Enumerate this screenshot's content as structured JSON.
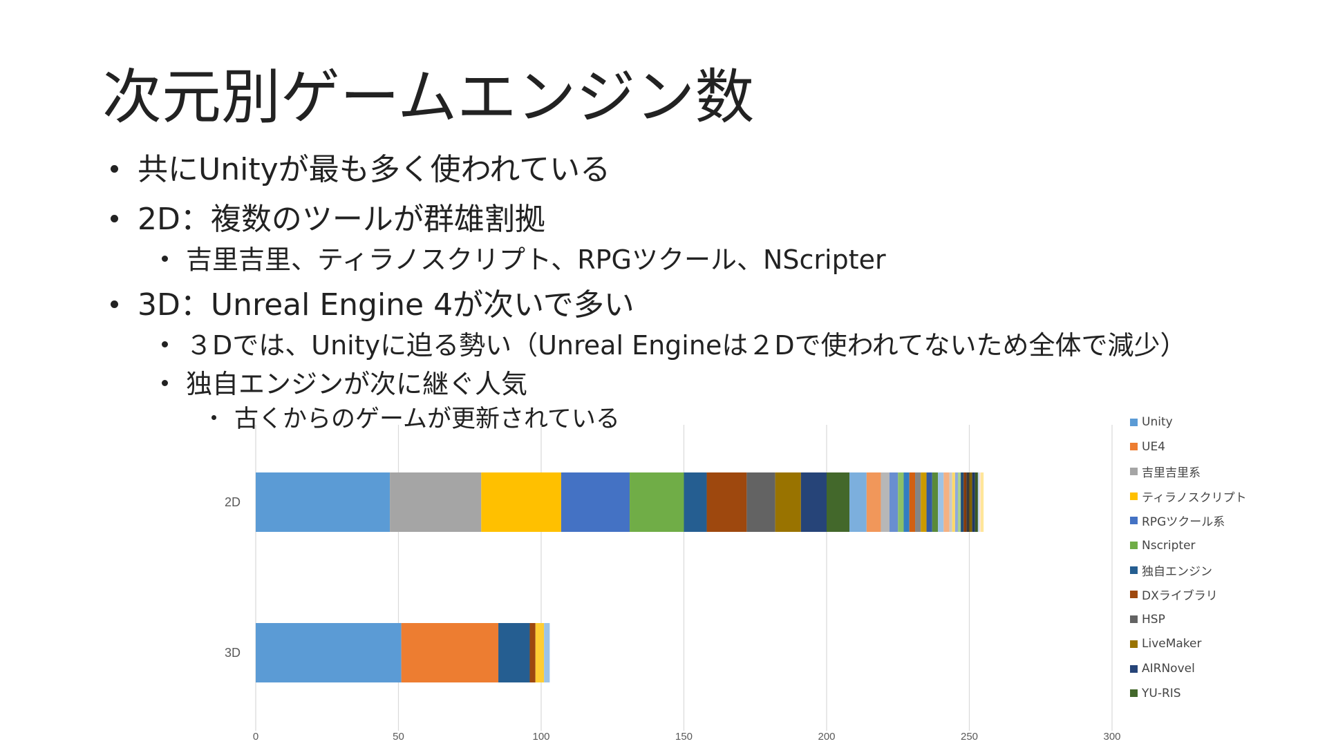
{
  "title": "次元別ゲームエンジン数",
  "bullets": [
    {
      "level": 1,
      "text": "共にUnityが最も多く使われている"
    },
    {
      "level": 1,
      "text": "2D：複数のツールが群雄割拠"
    },
    {
      "level": 2,
      "text": "吉里吉里、ティラノスクリプト、RPGツクール、NScripter"
    },
    {
      "level": 1,
      "text": "3D：Unreal Engine 4が次いで多い"
    },
    {
      "level": 2,
      "text": "３Dでは、Unityに迫る勢い（Unreal Engineは２Dで使われてないため全体で減少）"
    },
    {
      "level": 2,
      "text": "独自エンジンが次に継ぐ人気"
    },
    {
      "level": 3,
      "text": "古くからのゲームが更新されている"
    }
  ],
  "chart_data": {
    "type": "bar",
    "orientation": "horizontal",
    "stacked": true,
    "categories": [
      "2D",
      "3D"
    ],
    "xlim": [
      0,
      300
    ],
    "xticks": [
      0,
      50,
      100,
      150,
      200,
      250,
      300
    ],
    "grid": true,
    "legend_position": "right",
    "series": [
      {
        "name": "Unity",
        "color": "#5B9BD5",
        "values": [
          47,
          51
        ]
      },
      {
        "name": "UE4",
        "color": "#ED7D31",
        "values": [
          0,
          34
        ]
      },
      {
        "name": "吉里吉里系",
        "color": "#A5A5A5",
        "values": [
          32,
          0
        ]
      },
      {
        "name": "ティラノスクリプト",
        "color": "#FFC000",
        "values": [
          28,
          0
        ]
      },
      {
        "name": "RPGツクール系",
        "color": "#4472C4",
        "values": [
          24,
          0
        ]
      },
      {
        "name": "Nscripter",
        "color": "#70AD47",
        "values": [
          19,
          0
        ]
      },
      {
        "name": "独自エンジン",
        "color": "#255E91",
        "values": [
          8,
          11
        ]
      },
      {
        "name": "DXライブラリ",
        "color": "#9E480E",
        "values": [
          14,
          2
        ]
      },
      {
        "name": "HSP",
        "color": "#636363",
        "values": [
          10,
          0
        ]
      },
      {
        "name": "LiveMaker",
        "color": "#997300",
        "values": [
          9,
          0
        ]
      },
      {
        "name": "AIRNovel",
        "color": "#264478",
        "values": [
          9,
          0
        ]
      },
      {
        "name": "YU-RIS",
        "color": "#43682B",
        "values": [
          8,
          0
        ]
      },
      {
        "name": "",
        "color": "#7CAFDD",
        "values": [
          6,
          0
        ]
      },
      {
        "name": "",
        "color": "#F1975A",
        "values": [
          5,
          0
        ]
      },
      {
        "name": "",
        "color": "#B7B7B7",
        "values": [
          3,
          0
        ]
      },
      {
        "name": "",
        "color": "#FFCD33",
        "values": [
          0,
          3
        ]
      },
      {
        "name": "",
        "color": "#698ED0",
        "values": [
          3,
          0
        ]
      },
      {
        "name": "",
        "color": "#8CC168",
        "values": [
          2,
          0
        ]
      },
      {
        "name": "",
        "color": "#327DC2",
        "values": [
          2,
          0
        ]
      },
      {
        "name": "",
        "color": "#D26012",
        "values": [
          2,
          0
        ]
      },
      {
        "name": "",
        "color": "#848484",
        "values": [
          2,
          0
        ]
      },
      {
        "name": "",
        "color": "#CC9A00",
        "values": [
          2,
          0
        ]
      },
      {
        "name": "",
        "color": "#335AA1",
        "values": [
          2,
          0
        ]
      },
      {
        "name": "",
        "color": "#5A8A39",
        "values": [
          2,
          0
        ]
      },
      {
        "name": "",
        "color": "#9DC3E6",
        "values": [
          2,
          2
        ]
      },
      {
        "name": "",
        "color": "#F4B183",
        "values": [
          2,
          0
        ]
      },
      {
        "name": "",
        "color": "#C9C9C9",
        "values": [
          1,
          0
        ]
      },
      {
        "name": "",
        "color": "#FFD966",
        "values": [
          1,
          0
        ]
      },
      {
        "name": "",
        "color": "#8FAADC",
        "values": [
          1,
          0
        ]
      },
      {
        "name": "",
        "color": "#A9D18E",
        "values": [
          1,
          0
        ]
      },
      {
        "name": "",
        "color": "#1F4E79",
        "values": [
          1,
          0
        ]
      },
      {
        "name": "",
        "color": "#843C0C",
        "values": [
          1,
          0
        ]
      },
      {
        "name": "",
        "color": "#3A3A3A",
        "values": [
          1,
          0
        ]
      },
      {
        "name": "",
        "color": "#7F6000",
        "values": [
          1,
          0
        ]
      },
      {
        "name": "",
        "color": "#203864",
        "values": [
          1,
          0
        ]
      },
      {
        "name": "",
        "color": "#385723",
        "values": [
          1,
          0
        ]
      },
      {
        "name": "",
        "color": "#BDD7EE",
        "values": [
          0.5,
          0
        ]
      },
      {
        "name": "",
        "color": "#FBE5D6",
        "values": [
          0.5,
          0
        ]
      },
      {
        "name": "",
        "color": "#FFE699",
        "values": [
          1,
          0
        ]
      }
    ]
  }
}
